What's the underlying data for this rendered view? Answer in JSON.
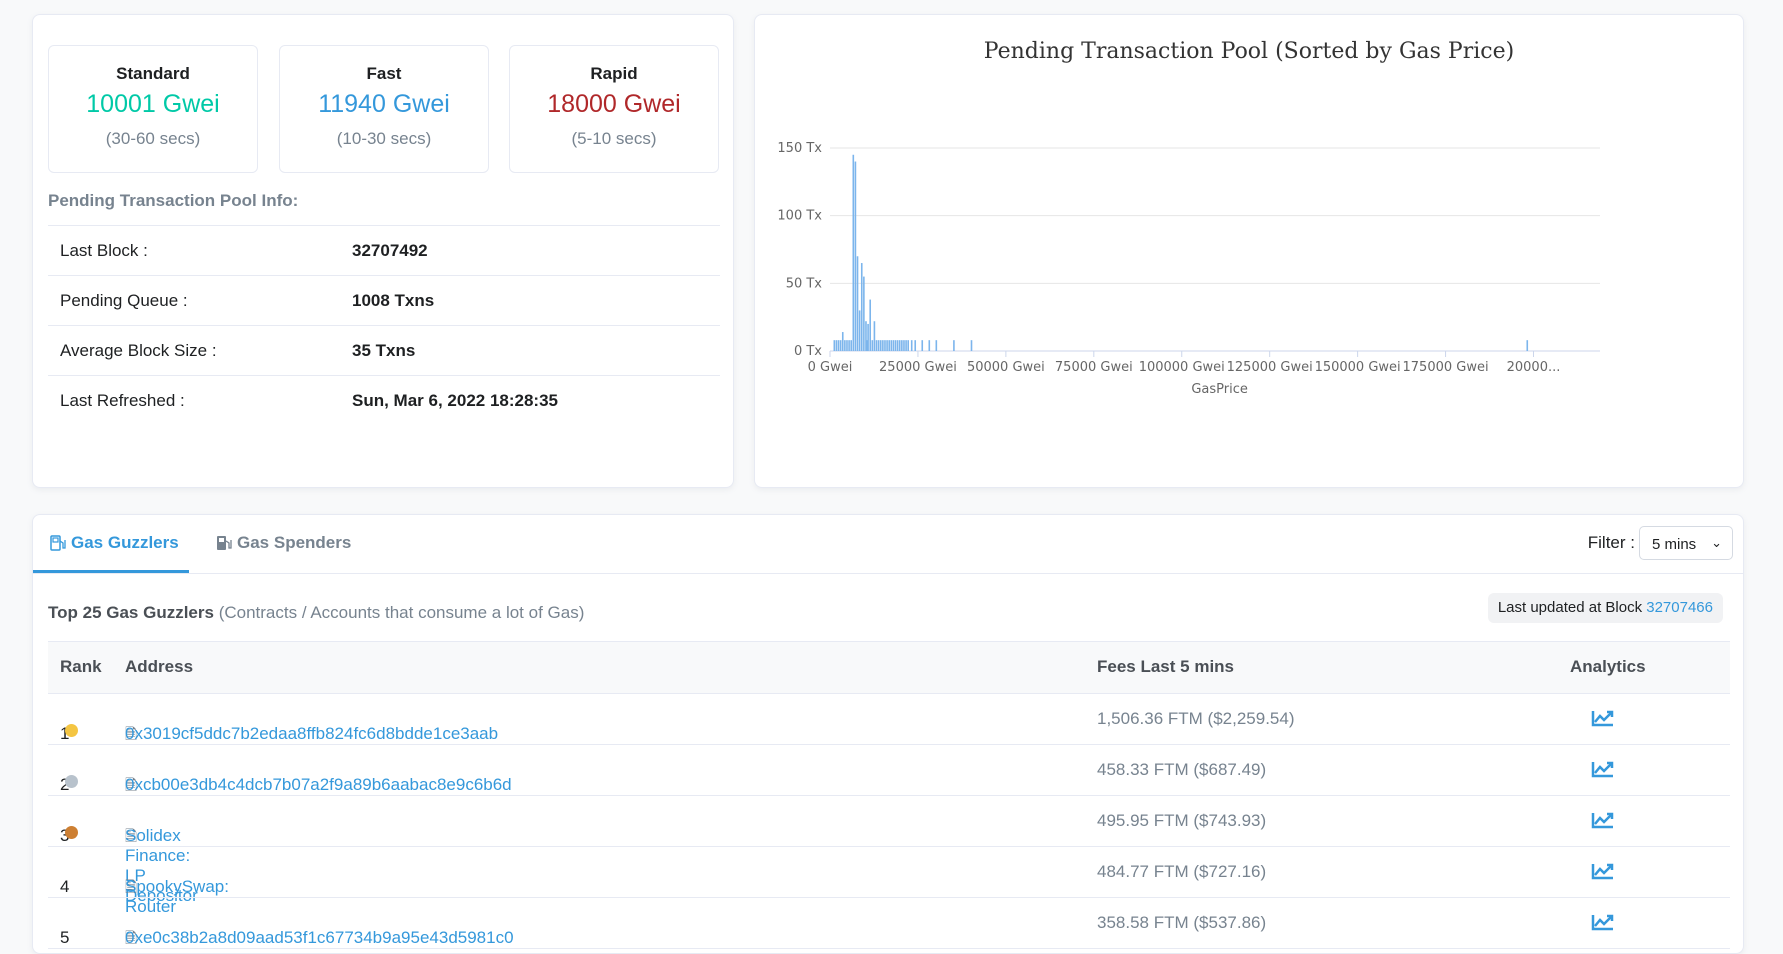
{
  "gas": [
    {
      "title": "Standard",
      "price": "10001 Gwei",
      "time": "(30-60 secs)",
      "color": "#00c9a7"
    },
    {
      "title": "Fast",
      "price": "11940 Gwei",
      "time": "(10-30 secs)",
      "color": "#3498db"
    },
    {
      "title": "Rapid",
      "price": "18000 Gwei",
      "time": "(5-10 secs)",
      "color": "#b0282a"
    }
  ],
  "pool": {
    "title": "Pending Transaction Pool Info:",
    "rows": [
      {
        "label": "Last Block :",
        "value": "32707492"
      },
      {
        "label": "Pending Queue :",
        "value": "1008 Txns"
      },
      {
        "label": "Average Block Size :",
        "value": "35 Txns"
      },
      {
        "label": "Last Refreshed :",
        "value": "Sun, Mar 6, 2022 18:28:35"
      }
    ]
  },
  "chart_data": {
    "type": "bar",
    "title": "Pending Transaction Pool (Sorted by Gas Price)",
    "xlabel": "GasPrice",
    "ylabel": "",
    "ylim": [
      0,
      150
    ],
    "xlim": [
      0,
      200000
    ],
    "yticks": [
      "0 Tx",
      "50 Tx",
      "100 Tx",
      "150 Tx"
    ],
    "xticks": [
      "0 Gwei",
      "25000 Gwei",
      "50000 Gwei",
      "75000 Gwei",
      "100000 Gwei",
      "125000 Gwei",
      "150000 Gwei",
      "175000 Gwei",
      "20000..."
    ],
    "bar_color": "#7cb5ec",
    "x": [
      1000,
      1600,
      2200,
      2800,
      3400,
      4000,
      4600,
      5200,
      5800,
      6400,
      7000,
      7600,
      8200,
      8800,
      9400,
      10000,
      10300,
      10600,
      11200,
      11800,
      12400,
      13000,
      13600,
      14200,
      14800,
      15400,
      16000,
      16600,
      17200,
      17800,
      18400,
      19000,
      19600,
      20200,
      20800,
      21400,
      22000,
      23000,
      24000,
      26000,
      28000,
      30000,
      35000,
      40000,
      198000
    ],
    "values": [
      8,
      8,
      8,
      8,
      14,
      8,
      8,
      8,
      8,
      145,
      140,
      70,
      30,
      65,
      55,
      22,
      8,
      20,
      38,
      8,
      22,
      8,
      8,
      8,
      8,
      8,
      8,
      8,
      8,
      8,
      8,
      8,
      8,
      8,
      8,
      8,
      8,
      8,
      8,
      8,
      8,
      8,
      8,
      8,
      8
    ]
  },
  "tabs": {
    "guzzlers": "Gas Guzzlers",
    "spenders": "Gas Spenders",
    "filter_label": "Filter :",
    "filter_value": "5 mins"
  },
  "table": {
    "title": "Top 25 Gas Guzzlers",
    "subtitle": "(Contracts / Accounts that consume a lot of Gas)",
    "block_label": "Last updated at Block",
    "block_value": "32707466",
    "headers": {
      "rank": "Rank",
      "address": "Address",
      "fees": "Fees Last 5 mins",
      "analytics": "Analytics"
    },
    "rows": [
      {
        "rank": "1",
        "address": "0x3019cf5ddc7b2edaa8ffb824fc6d8bdde1ce3aab",
        "fees": "1,506.36 FTM ($2,259.54)",
        "medal": "#f4c542"
      },
      {
        "rank": "2",
        "address": "0xcb00e3db4c4dcb7b07a2f9a89b6aabac8e9c6b6d",
        "fees": "458.33 FTM ($687.49)",
        "medal": "#b8c2cc"
      },
      {
        "rank": "3",
        "address": "Solidex Finance: LP Depositor",
        "fees": "495.95 FTM ($743.93)",
        "medal": "#cd7f32"
      },
      {
        "rank": "4",
        "address": "SpookySwap: Router",
        "fees": "484.77 FTM ($727.16)",
        "medal": ""
      },
      {
        "rank": "5",
        "address": "0xe0c38b2a8d09aad53f1c67734b9a95e43d5981c0",
        "fees": "358.58 FTM ($537.86)",
        "medal": ""
      }
    ]
  }
}
